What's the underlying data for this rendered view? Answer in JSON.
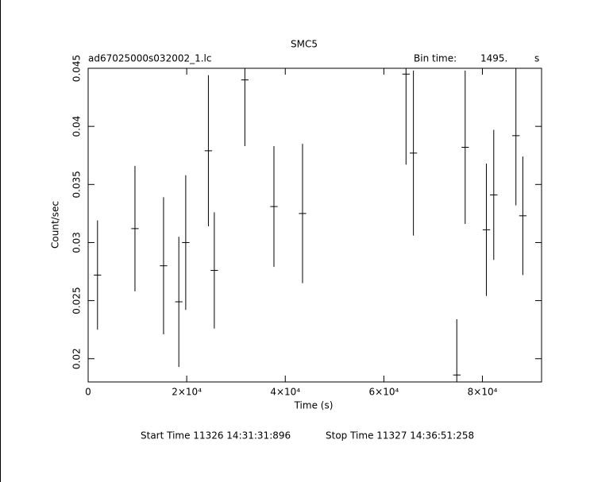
{
  "chart_data": {
    "type": "errorbar",
    "title": "SMC5",
    "file_label": "ad67025000s032002_1.lc",
    "bin_label": "Bin time:",
    "bin_time": {
      "value": 1495,
      "label": "1495."
    },
    "bin_unit": "s",
    "x_label": "Time (s)",
    "y_label": "Count/sec",
    "start_time": "Start Time 11326  14:31:31:896",
    "stop_time": "Stop Time 11327  14:36:51:258",
    "color": "#000000",
    "xlim": [
      0,
      92000
    ],
    "ylim": [
      0.018,
      0.045
    ],
    "xticks": [
      0,
      {
        "value": 20000,
        "label": "2×10⁴"
      },
      {
        "value": 40000,
        "label": "4×10⁴"
      },
      {
        "value": 60000,
        "label": "6×10⁴"
      },
      {
        "value": 80000,
        "label": "8×10⁴"
      }
    ],
    "yticks": [
      0.02,
      0.025,
      0.03,
      0.035,
      0.04,
      0.045
    ],
    "x": [
      1900,
      9500,
      15300,
      18400,
      19800,
      24400,
      25600,
      31800,
      37700,
      43500,
      64500,
      66000,
      74800,
      76500,
      80800,
      82300,
      86800,
      88200
    ],
    "values": [
      0.0272,
      0.0312,
      0.028,
      0.0249,
      0.03,
      0.0379,
      0.0276,
      0.044,
      0.0331,
      0.0325,
      0.0445,
      0.0377,
      0.0186,
      0.0382,
      0.0311,
      0.0341,
      0.0392,
      0.0323
    ],
    "errors": [
      0.0047,
      0.0054,
      0.0059,
      0.0056,
      0.0058,
      0.0065,
      0.005,
      0.0057,
      0.0052,
      0.006,
      0.0078,
      0.0071,
      0.0048,
      0.0066,
      0.0057,
      0.0056,
      0.006,
      0.0051
    ]
  }
}
